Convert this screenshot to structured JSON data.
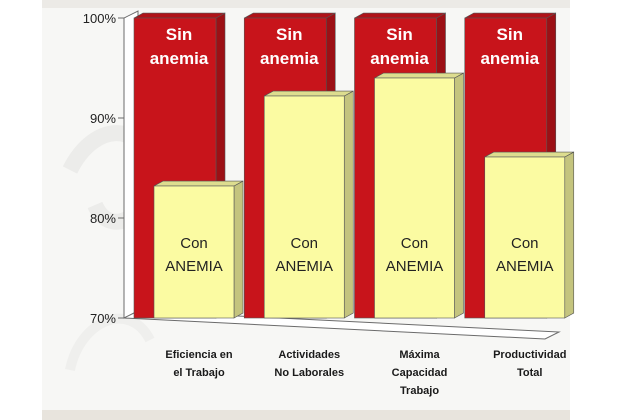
{
  "chart_data": {
    "type": "bar",
    "title": "",
    "xlabel": "",
    "ylabel": "",
    "ylim": [
      70,
      100
    ],
    "yticks": [
      "70%",
      "80%",
      "90%",
      "100%"
    ],
    "categories": [
      [
        "Eficiencia en",
        "el Trabajo"
      ],
      [
        "Actividades",
        "No Laborales"
      ],
      [
        "Máxima",
        "Capacidad",
        "Trabajo"
      ],
      [
        "Productividad",
        "Total"
      ]
    ],
    "series": [
      {
        "label_lines": [
          "Sin",
          "anemia"
        ],
        "values": [
          100,
          100,
          100,
          100
        ],
        "color": "#c8141b"
      },
      {
        "label_lines": [
          "Con",
          "ANEMIA"
        ],
        "values": [
          83.2,
          92.2,
          94.0,
          86.1
        ],
        "color": "#fbfba2"
      }
    ],
    "grid": false,
    "legend": "none",
    "projection": "3d"
  }
}
